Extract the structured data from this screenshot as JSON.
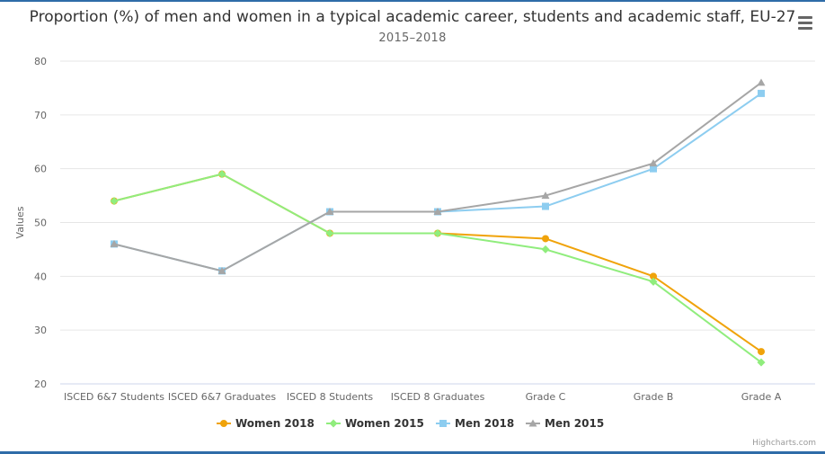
{
  "chart_data": {
    "type": "line",
    "title": "Proportion (%) of men and women in a typical academic career, students and academic staff, EU-27",
    "subtitle": "2015–2018",
    "ylabel": "Values",
    "xlabel": "",
    "ylim": [
      20,
      80
    ],
    "yticks": [
      20,
      30,
      40,
      50,
      60,
      70,
      80
    ],
    "grid": true,
    "legend_position": "bottom-center",
    "categories": [
      "ISCED 6&7 Students",
      "ISCED 6&7 Graduates",
      "ISCED 8 Students",
      "ISCED 8 Graduates",
      "Grade C",
      "Grade B",
      "Grade A"
    ],
    "series": [
      {
        "name": "Women 2018",
        "color": "#f0a30a",
        "marker": "circle",
        "values": [
          54,
          59,
          48,
          48,
          47,
          40,
          26
        ]
      },
      {
        "name": "Women 2015",
        "color": "#90ed7d",
        "marker": "diamond",
        "values": [
          54,
          59,
          48,
          48,
          45,
          39,
          24
        ]
      },
      {
        "name": "Men 2018",
        "color": "#8dcdf0",
        "marker": "square",
        "values": [
          46,
          41,
          52,
          52,
          53,
          60,
          74
        ]
      },
      {
        "name": "Men 2015",
        "color": "#a6a6a6",
        "marker": "triangle",
        "values": [
          46,
          41,
          52,
          52,
          55,
          61,
          76
        ]
      }
    ]
  },
  "credits": "Highcharts.com",
  "menu_icon": "hamburger-menu-icon"
}
